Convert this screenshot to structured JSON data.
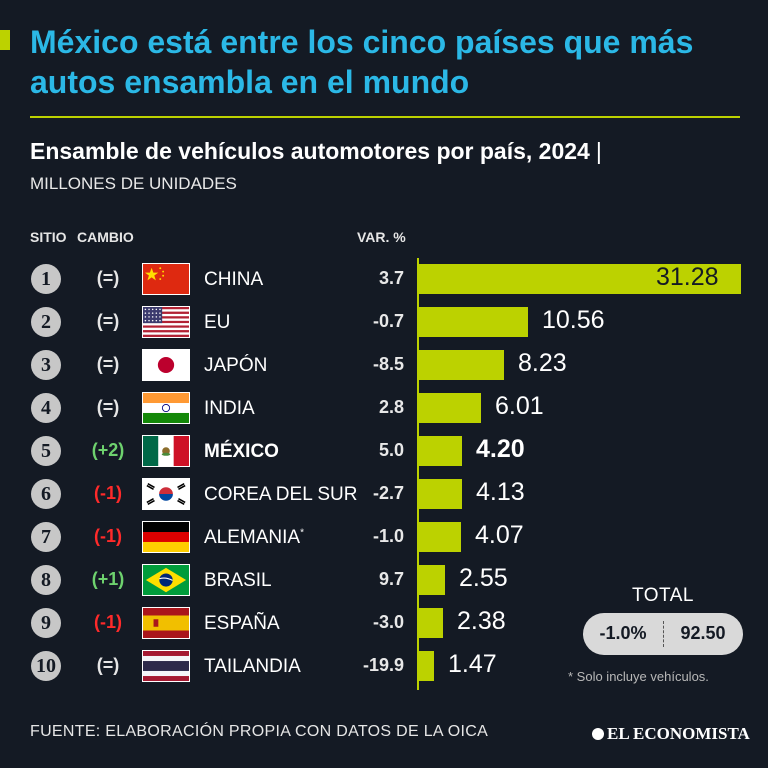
{
  "headline": "México está entre los cinco países que más autos ensambla en el mundo",
  "subtitle": "Ensamble de vehículos automotores por país, 2024",
  "subtitle_sep": "|",
  "unit_label": "MILLONES DE UNIDADES",
  "columns": {
    "rank": "SITIO",
    "change": "CAMBIO",
    "var": "VAR. %"
  },
  "colors": {
    "background": "#141a24",
    "headline": "#2bb8e6",
    "bar": "#bcd200",
    "up": "#6ed26e",
    "down": "#ff2a2a",
    "neutral": "#e6e6e6"
  },
  "chart_data": {
    "type": "bar",
    "orientation": "horizontal",
    "categories": [
      "CHINA",
      "EU",
      "JAPÓN",
      "INDIA",
      "MÉXICO",
      "COREA DEL SUR",
      "ALEMANIA",
      "BRASIL",
      "ESPAÑA",
      "TAILANDIA"
    ],
    "values": [
      31.28,
      10.56,
      8.23,
      6.01,
      4.2,
      4.13,
      4.07,
      2.55,
      2.38,
      1.47
    ],
    "value_labels": [
      "31.28",
      "10.56",
      "8.23",
      "6.01",
      "4.20",
      "4.13",
      "4.07",
      "2.55",
      "2.38",
      "1.47"
    ],
    "title": "Ensamble de vehículos automotores por país, 2024",
    "ylabel": "MILLONES DE UNIDADES",
    "xlim": [
      0,
      31.28
    ],
    "highlight": "MÉXICO"
  },
  "rows": [
    {
      "rank": "1",
      "change": "(=)",
      "trend": "neutral",
      "country": "CHINA",
      "note": "",
      "flag": "china-flag",
      "var": "3.7",
      "value": "31.28"
    },
    {
      "rank": "2",
      "change": "(=)",
      "trend": "neutral",
      "country": "EU",
      "note": "",
      "flag": "usa-flag",
      "var": "-0.7",
      "value": "10.56"
    },
    {
      "rank": "3",
      "change": "(=)",
      "trend": "neutral",
      "country": "JAPÓN",
      "note": "",
      "flag": "japan-flag",
      "var": "-8.5",
      "value": "8.23"
    },
    {
      "rank": "4",
      "change": "(=)",
      "trend": "neutral",
      "country": "INDIA",
      "note": "",
      "flag": "india-flag",
      "var": "2.8",
      "value": "6.01"
    },
    {
      "rank": "5",
      "change": "(+2)",
      "trend": "up",
      "country": "MÉXICO",
      "note": "",
      "flag": "mexico-flag",
      "var": "5.0",
      "value": "4.20"
    },
    {
      "rank": "6",
      "change": "(-1)",
      "trend": "down",
      "country": "COREA DEL SUR",
      "note": "",
      "flag": "korea-flag",
      "var": "-2.7",
      "value": "4.13"
    },
    {
      "rank": "7",
      "change": "(-1)",
      "trend": "down",
      "country": "ALEMANIA",
      "note": "*",
      "flag": "germany-flag",
      "var": "-1.0",
      "value": "4.07"
    },
    {
      "rank": "8",
      "change": "(+1)",
      "trend": "up",
      "country": "BRASIL",
      "note": "",
      "flag": "brazil-flag",
      "var": "9.7",
      "value": "2.55"
    },
    {
      "rank": "9",
      "change": "(-1)",
      "trend": "down",
      "country": "ESPAÑA",
      "note": "",
      "flag": "spain-flag",
      "var": "-3.0",
      "value": "2.38"
    },
    {
      "rank": "10",
      "change": "(=)",
      "trend": "neutral",
      "country": "TAILANDIA",
      "note": "",
      "flag": "thailand-flag",
      "var": "-19.9",
      "value": "1.47"
    }
  ],
  "total": {
    "label": "TOTAL",
    "var": "-1.0%",
    "value": "92.50"
  },
  "footnote": "* Solo incluye vehículos.",
  "source": "FUENTE: ELABORACIÓN PROPIA CON DATOS DE LA OICA",
  "brand": "EL ECONOMISTA"
}
